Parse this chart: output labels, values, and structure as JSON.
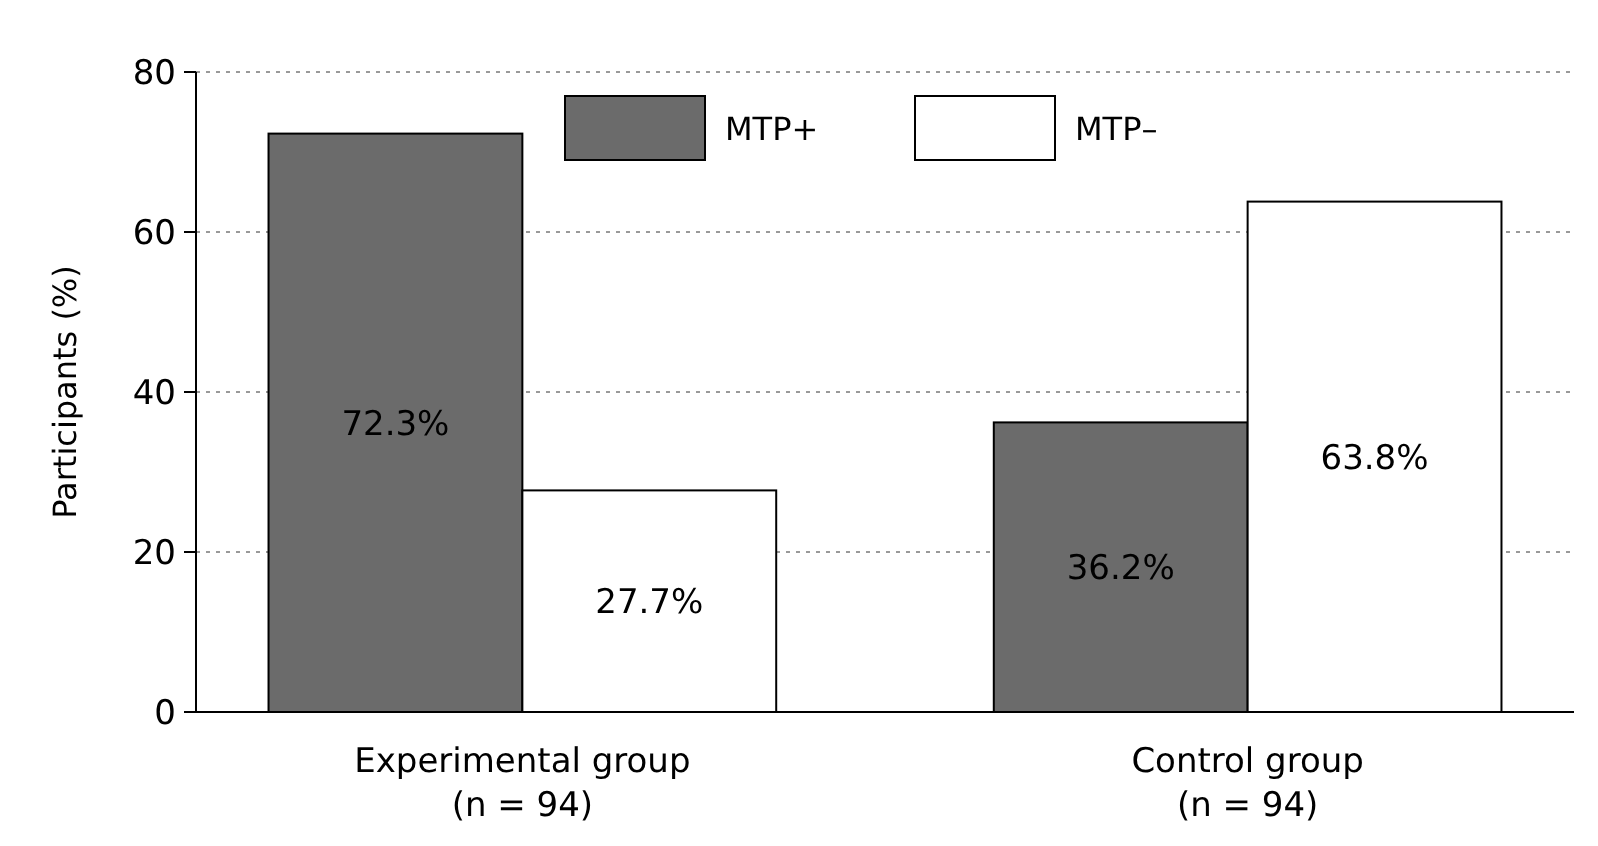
{
  "chart_data": {
    "type": "bar",
    "ylabel": "Participants (%)",
    "categories": [
      "Experimental group\n(n = 94)",
      "Control group\n(n = 94)"
    ],
    "series": [
      {
        "name": "MTP+",
        "color": "#6b6b6b",
        "values": [
          72.3,
          36.2
        ],
        "value_labels": [
          "72.3%",
          "36.2%"
        ]
      },
      {
        "name": "MTP–",
        "color": "#ffffff",
        "values": [
          27.7,
          63.8
        ],
        "value_labels": [
          "27.7%",
          "63.8%"
        ]
      }
    ],
    "ylim": [
      0,
      80
    ],
    "yticks": [
      0,
      20,
      40,
      60,
      80
    ],
    "grid": "y",
    "legend": "top"
  }
}
